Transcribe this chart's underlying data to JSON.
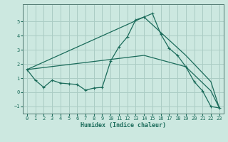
{
  "xlabel": "Humidex (Indice chaleur)",
  "bg_color": "#cce8e0",
  "grid_color": "#aaccc4",
  "line_color": "#1a6b5a",
  "xlim": [
    -0.5,
    23.5
  ],
  "ylim": [
    -1.5,
    6.2
  ],
  "xticks": [
    0,
    1,
    2,
    3,
    4,
    5,
    6,
    7,
    8,
    9,
    10,
    11,
    12,
    13,
    14,
    15,
    16,
    17,
    18,
    19,
    20,
    21,
    22,
    23
  ],
  "yticks": [
    -1,
    0,
    1,
    2,
    3,
    4,
    5
  ],
  "line1_x": [
    0,
    1,
    2,
    3,
    4,
    5,
    6,
    7,
    8,
    9,
    10,
    11,
    12,
    13,
    14,
    15,
    16,
    17,
    18,
    19,
    20,
    21,
    22,
    23
  ],
  "line1_y": [
    1.6,
    0.85,
    0.35,
    0.85,
    0.65,
    0.6,
    0.55,
    0.15,
    0.3,
    0.35,
    2.2,
    3.2,
    3.9,
    5.1,
    5.3,
    5.55,
    4.1,
    3.1,
    2.6,
    1.8,
    0.75,
    0.1,
    -1.0,
    -1.1
  ],
  "line2_x": [
    0,
    14,
    19,
    22,
    23
  ],
  "line2_y": [
    1.6,
    2.6,
    1.8,
    0.1,
    -1.1
  ],
  "line3_x": [
    0,
    14,
    19,
    22,
    23
  ],
  "line3_y": [
    1.6,
    5.3,
    2.6,
    0.75,
    -1.1
  ]
}
